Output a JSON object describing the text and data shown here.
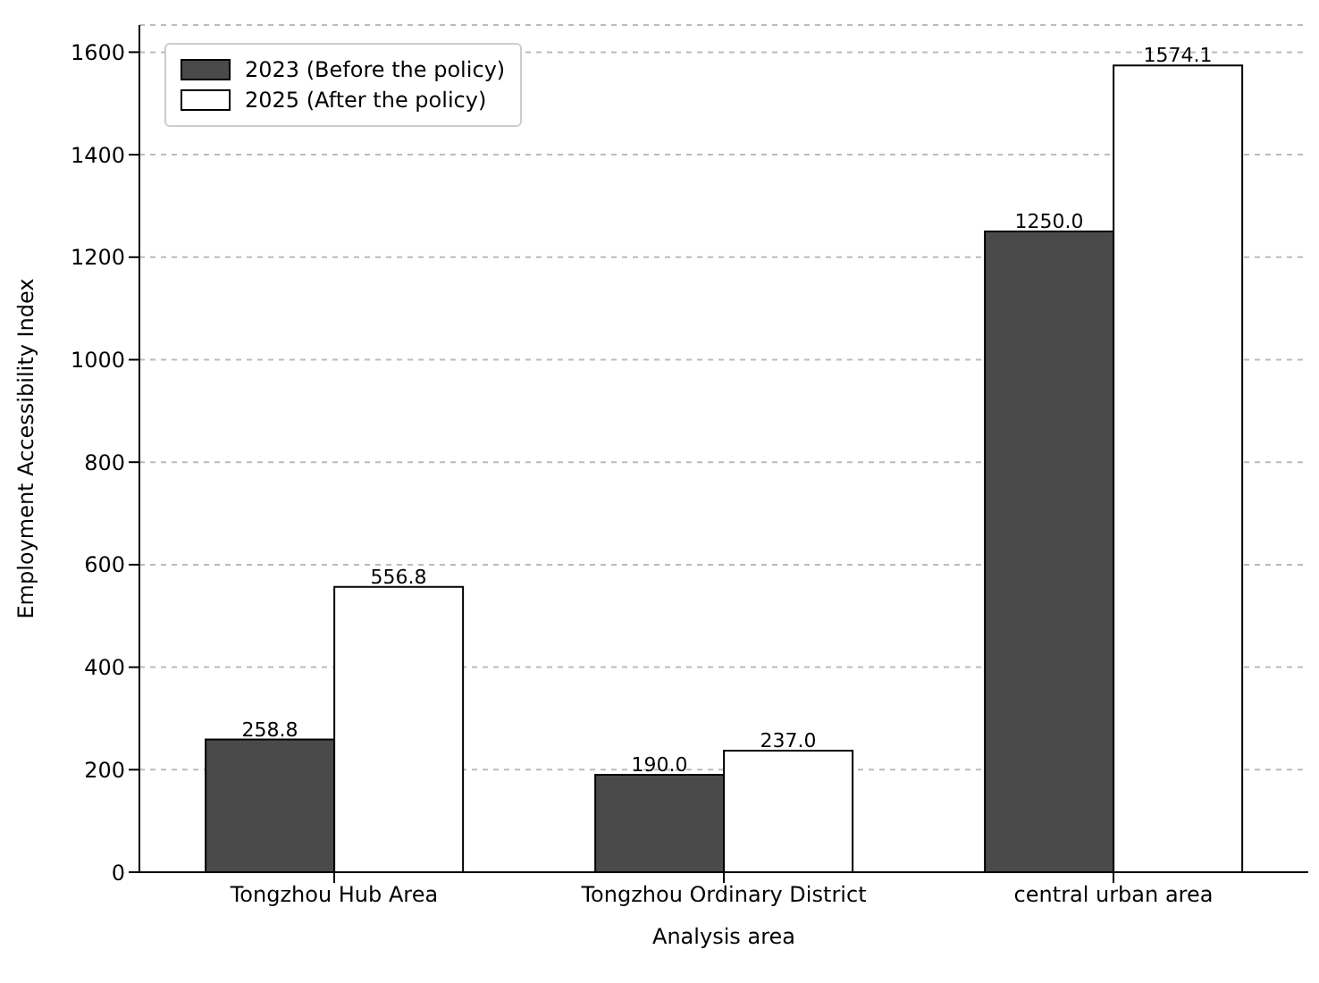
{
  "chart_data": {
    "type": "bar",
    "xlabel": "Analysis area",
    "ylabel": "Employment Accessibility Index",
    "categories": [
      "Tongzhou Hub Area",
      "Tongzhou Ordinary District",
      "central urban area"
    ],
    "series": [
      {
        "name": "2023 (Before the policy)",
        "color": "#4a4a4a",
        "values": [
          258.8,
          190.0,
          1250.0
        ],
        "value_labels": [
          "258.8",
          "190.0",
          "1250.0"
        ]
      },
      {
        "name": "2025 (After the policy)",
        "color": "#ffffff",
        "values": [
          556.8,
          237.0,
          1574.1
        ],
        "value_labels": [
          "556.8",
          "237.0",
          "1574.1"
        ]
      }
    ],
    "ylim": [
      0,
      1653
    ],
    "yticks": [
      0,
      200,
      400,
      600,
      800,
      1000,
      1200,
      1400,
      1600
    ],
    "grid": "y",
    "legend": "top left"
  }
}
